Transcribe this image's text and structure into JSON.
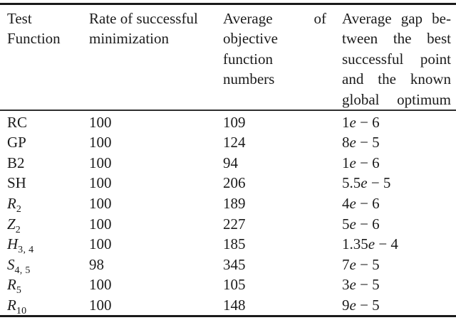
{
  "table": {
    "headers": {
      "col1": [
        "Test",
        "Function"
      ],
      "col2": [
        "Rate of successful",
        "minimization"
      ],
      "col3": {
        "top_left": "Average",
        "top_right": "of",
        "line2": "objective",
        "line3": "function",
        "line4": "numbers"
      },
      "col4": [
        "Average gap be-",
        "tween the best",
        "successful point",
        "and the known",
        "global optimum"
      ]
    },
    "rows": [
      {
        "name": "RC",
        "sub": "",
        "rate": "100",
        "avg": "109",
        "gap_m": "1",
        "gap_e": "e",
        "gap_x": " − 6"
      },
      {
        "name": "GP",
        "sub": "",
        "rate": "100",
        "avg": "124",
        "gap_m": "8",
        "gap_e": "e",
        "gap_x": " − 5"
      },
      {
        "name": "B2",
        "sub": "",
        "rate": "100",
        "avg": "94",
        "gap_m": "1",
        "gap_e": "e",
        "gap_x": " − 6"
      },
      {
        "name": "SH",
        "sub": "",
        "rate": "100",
        "avg": "206",
        "gap_m": "5.5",
        "gap_e": "e",
        "gap_x": " − 5"
      },
      {
        "name": "R",
        "sub": "2",
        "rate": "100",
        "avg": "189",
        "gap_m": "4",
        "gap_e": "e",
        "gap_x": " − 6"
      },
      {
        "name": "Z",
        "sub": "2",
        "rate": "100",
        "avg": "227",
        "gap_m": "5",
        "gap_e": "e",
        "gap_x": " − 6"
      },
      {
        "name": "H",
        "sub": "3, 4",
        "rate": "100",
        "avg": "185",
        "gap_m": "1.35",
        "gap_e": "e",
        "gap_x": " − 4"
      },
      {
        "name": "S",
        "sub": "4, 5",
        "rate": "98",
        "avg": "345",
        "gap_m": "7",
        "gap_e": "e",
        "gap_x": " − 5"
      },
      {
        "name": "R",
        "sub": "5",
        "rate": "100",
        "avg": "105",
        "gap_m": "3",
        "gap_e": "e",
        "gap_x": " − 5"
      },
      {
        "name": "R",
        "sub": "10",
        "rate": "100",
        "avg": "148",
        "gap_m": "9",
        "gap_e": "e",
        "gap_x": " − 5"
      }
    ],
    "colors": {
      "text": "#1b1b1b",
      "rule": "#1a1a1a",
      "background": "#ffffff"
    }
  },
  "chart_data": {
    "type": "table",
    "columns": [
      "Test Function",
      "Rate of successful minimization",
      "Average of objective function numbers",
      "Average gap between the best successful point and the known global optimum"
    ],
    "rows": [
      [
        "RC",
        "100",
        "109",
        "1e − 6"
      ],
      [
        "GP",
        "100",
        "124",
        "8e − 5"
      ],
      [
        "B2",
        "100",
        "94",
        "1e − 6"
      ],
      [
        "SH",
        "100",
        "206",
        "5.5e − 5"
      ],
      [
        "R_2",
        "100",
        "189",
        "4e − 6"
      ],
      [
        "Z_2",
        "100",
        "227",
        "5e − 6"
      ],
      [
        "H_3,4",
        "100",
        "185",
        "1.35e − 4"
      ],
      [
        "S_4,5",
        "98",
        "345",
        "7e − 5"
      ],
      [
        "R_5",
        "100",
        "105",
        "3e − 5"
      ],
      [
        "R_10",
        "100",
        "148",
        "9e − 5"
      ]
    ]
  }
}
